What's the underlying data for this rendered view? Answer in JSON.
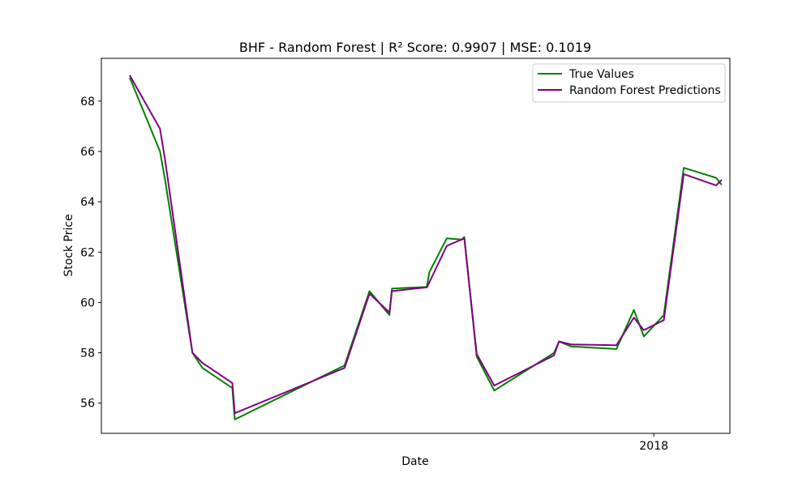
{
  "chart_data": {
    "type": "line",
    "title": "BHF - Random Forest | R² Score: 0.9907 | MSE: 0.1019",
    "xlabel": "Date",
    "ylabel": "Stock Price",
    "x_ticks": [
      {
        "label": "2018",
        "t": 210
      }
    ],
    "y_ticks": [
      56,
      58,
      60,
      62,
      64,
      66,
      68
    ],
    "xlim": [
      -11.5,
      240.5
    ],
    "ylim": [
      54.8,
      69.7
    ],
    "grid": false,
    "legend_position": "top-right",
    "colors": {
      "true_values": "#008000",
      "predictions": "#800080"
    },
    "series": [
      {
        "name": "True Values",
        "color": "#008000",
        "points": [
          [
            0,
            68.9
          ],
          [
            12,
            66.0
          ],
          [
            14,
            64.9
          ],
          [
            25,
            58.0
          ],
          [
            29,
            57.4
          ],
          [
            41,
            56.6
          ],
          [
            42,
            55.35
          ],
          [
            86,
            57.5
          ],
          [
            96,
            60.45
          ],
          [
            104,
            59.5
          ],
          [
            105,
            60.55
          ],
          [
            119,
            60.62
          ],
          [
            120,
            61.2
          ],
          [
            127,
            62.55
          ],
          [
            133,
            62.5
          ],
          [
            134,
            62.6
          ],
          [
            139,
            57.85
          ],
          [
            146,
            56.5
          ],
          [
            170,
            58.0
          ],
          [
            172,
            58.45
          ],
          [
            177,
            58.25
          ],
          [
            195,
            58.15
          ],
          [
            202,
            59.7
          ],
          [
            206,
            58.65
          ],
          [
            214,
            59.5
          ],
          [
            222,
            65.35
          ],
          [
            235,
            64.95
          ],
          [
            237,
            64.7
          ]
        ]
      },
      {
        "name": "Random Forest Predictions",
        "color": "#800080",
        "points": [
          [
            0,
            69.0
          ],
          [
            12,
            66.9
          ],
          [
            14,
            65.7
          ],
          [
            25,
            58.0
          ],
          [
            29,
            57.6
          ],
          [
            41,
            56.8
          ],
          [
            42,
            55.6
          ],
          [
            86,
            57.4
          ],
          [
            96,
            60.35
          ],
          [
            104,
            59.6
          ],
          [
            105,
            60.45
          ],
          [
            119,
            60.6
          ],
          [
            120,
            60.8
          ],
          [
            127,
            62.25
          ],
          [
            133,
            62.5
          ],
          [
            134,
            62.55
          ],
          [
            139,
            57.95
          ],
          [
            146,
            56.7
          ],
          [
            170,
            57.9
          ],
          [
            172,
            58.45
          ],
          [
            177,
            58.33
          ],
          [
            195,
            58.3
          ],
          [
            202,
            59.4
          ],
          [
            206,
            58.9
          ],
          [
            214,
            59.3
          ],
          [
            222,
            65.1
          ],
          [
            235,
            64.65
          ],
          [
            237,
            64.85
          ]
        ]
      }
    ]
  }
}
